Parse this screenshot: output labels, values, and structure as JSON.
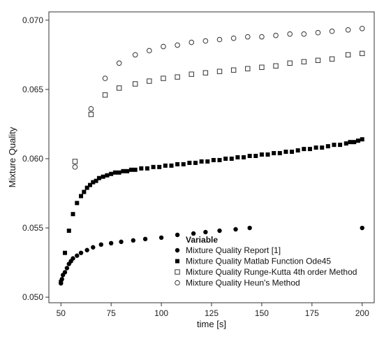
{
  "chart_data": {
    "type": "scatter",
    "title": "",
    "xlabel": "time [s]",
    "ylabel": "Mixture Quality",
    "xlim": [
      44,
      206
    ],
    "ylim": [
      0.0496,
      0.0706
    ],
    "xticks": [
      50,
      75,
      100,
      125,
      150,
      175,
      200
    ],
    "yticks": [
      0.05,
      0.055,
      0.06,
      0.065,
      0.07
    ],
    "ytick_labels": [
      "0.050",
      "0.055",
      "0.060",
      "0.065",
      "0.070"
    ],
    "grid": false,
    "legend": {
      "title": "Variable",
      "placement": "bottom-right"
    },
    "series": [
      {
        "name": "Mixture Quality Report [1]",
        "marker": "filled-circle",
        "x": [
          50,
          50.5,
          51,
          52,
          53,
          54,
          55,
          56,
          58,
          60,
          63,
          66,
          70,
          75,
          80,
          86,
          92,
          100,
          108,
          116,
          122,
          129,
          137,
          144,
          200
        ],
        "y": [
          0.051,
          0.0513,
          0.0516,
          0.0518,
          0.0521,
          0.0524,
          0.0526,
          0.0528,
          0.053,
          0.0532,
          0.0534,
          0.0536,
          0.0538,
          0.0539,
          0.054,
          0.0541,
          0.0542,
          0.0543,
          0.0545,
          0.0546,
          0.0547,
          0.0548,
          0.0549,
          0.055,
          0.055
        ]
      },
      {
        "name": "Mixture Quality Matlab Function Ode45",
        "marker": "filled-square",
        "x": [
          50,
          52,
          54,
          56,
          58,
          60,
          61.5,
          63,
          64.5,
          66,
          67.5,
          69,
          71,
          73,
          75,
          77,
          79,
          81,
          83,
          85,
          87,
          90,
          93,
          96,
          99,
          102,
          105,
          108,
          111,
          114,
          117,
          120,
          123,
          126,
          129,
          132,
          135,
          138,
          141,
          144,
          147,
          150,
          153,
          156,
          159,
          162,
          165,
          168,
          171,
          174,
          177,
          180,
          183,
          186,
          189,
          192,
          194,
          196,
          198,
          200
        ],
        "y": [
          0.0511,
          0.0532,
          0.0548,
          0.056,
          0.0568,
          0.0573,
          0.0576,
          0.0579,
          0.0581,
          0.0583,
          0.0584,
          0.0586,
          0.0587,
          0.0588,
          0.0589,
          0.059,
          0.059,
          0.0591,
          0.0591,
          0.0592,
          0.0592,
          0.0593,
          0.0593,
          0.0594,
          0.0594,
          0.0595,
          0.0595,
          0.0596,
          0.0596,
          0.0597,
          0.0597,
          0.0598,
          0.0598,
          0.0599,
          0.0599,
          0.06,
          0.06,
          0.0601,
          0.0601,
          0.0602,
          0.0602,
          0.0603,
          0.0603,
          0.0604,
          0.0604,
          0.0605,
          0.0605,
          0.0606,
          0.0607,
          0.0607,
          0.0608,
          0.0608,
          0.0609,
          0.061,
          0.061,
          0.0611,
          0.0612,
          0.0612,
          0.0613,
          0.0614
        ]
      },
      {
        "name": "Mixture Quality Runge-Kutta 4th order Method",
        "marker": "open-square",
        "x": [
          57,
          65,
          72,
          79,
          87,
          94,
          101,
          108,
          115,
          122,
          129,
          136,
          143,
          150,
          157,
          164,
          171,
          178,
          185,
          193,
          200
        ],
        "y": [
          0.0598,
          0.0632,
          0.0646,
          0.0651,
          0.0654,
          0.0656,
          0.0658,
          0.0659,
          0.0661,
          0.0662,
          0.0663,
          0.0664,
          0.0665,
          0.0666,
          0.0667,
          0.0669,
          0.067,
          0.0671,
          0.0672,
          0.0675,
          0.0676
        ]
      },
      {
        "name": "Mixture Quality Heun's Method",
        "marker": "open-circle",
        "x": [
          57,
          65,
          72,
          79,
          87,
          94,
          101,
          108,
          115,
          122,
          129,
          136,
          143,
          150,
          157,
          164,
          171,
          178,
          185,
          193,
          200
        ],
        "y": [
          0.0594,
          0.0636,
          0.0658,
          0.0669,
          0.0675,
          0.0678,
          0.0681,
          0.0682,
          0.0684,
          0.0685,
          0.0686,
          0.0687,
          0.0688,
          0.0688,
          0.0689,
          0.069,
          0.069,
          0.0691,
          0.0692,
          0.0693,
          0.0694
        ]
      }
    ]
  }
}
